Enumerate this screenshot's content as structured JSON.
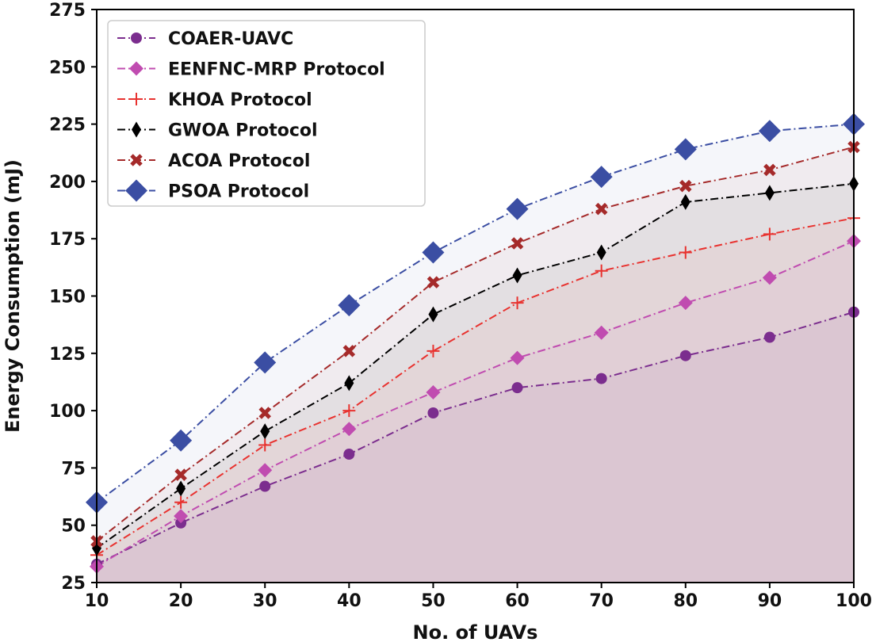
{
  "chart_data": {
    "type": "line",
    "title": "",
    "xlabel": "No. of UAVs",
    "ylabel": "Energy Consumption (mJ)",
    "xlim": [
      10,
      100
    ],
    "ylim": [
      25,
      275
    ],
    "x": [
      10,
      20,
      30,
      40,
      50,
      60,
      70,
      80,
      90,
      100
    ],
    "xticks": [
      10,
      20,
      30,
      40,
      50,
      60,
      70,
      80,
      90,
      100
    ],
    "yticks": [
      25,
      50,
      75,
      100,
      125,
      150,
      175,
      200,
      225,
      250,
      275
    ],
    "legend_position": "top-left",
    "grid": false,
    "series": [
      {
        "name": "COAER-UAVC",
        "marker": "circle",
        "color": "#7b2d8e",
        "values": [
          33,
          51,
          67,
          81,
          99,
          110,
          114,
          124,
          132,
          143
        ]
      },
      {
        "name": "EENFNC-MRP Protocol",
        "marker": "diamond",
        "color": "#c04cb0",
        "values": [
          32,
          54,
          74,
          92,
          108,
          123,
          134,
          147,
          158,
          174
        ]
      },
      {
        "name": "KHOA Protocol",
        "marker": "plus",
        "color": "#e8322f",
        "values": [
          37,
          60,
          85,
          100,
          126,
          147,
          161,
          169,
          177,
          184
        ]
      },
      {
        "name": "GWOA Protocol",
        "marker": "thin-diamond",
        "color": "#000000",
        "values": [
          40,
          66,
          91,
          112,
          142,
          159,
          169,
          191,
          195,
          199
        ]
      },
      {
        "name": "ACOA Protocol",
        "marker": "x",
        "color": "#a52a2a",
        "values": [
          43,
          72,
          99,
          126,
          156,
          173,
          188,
          198,
          205,
          215
        ]
      },
      {
        "name": "PSOA Protocol",
        "marker": "big-diamond",
        "color": "#3b4ea3",
        "values": [
          60,
          87,
          121,
          146,
          169,
          188,
          202,
          214,
          222,
          225
        ]
      }
    ]
  }
}
